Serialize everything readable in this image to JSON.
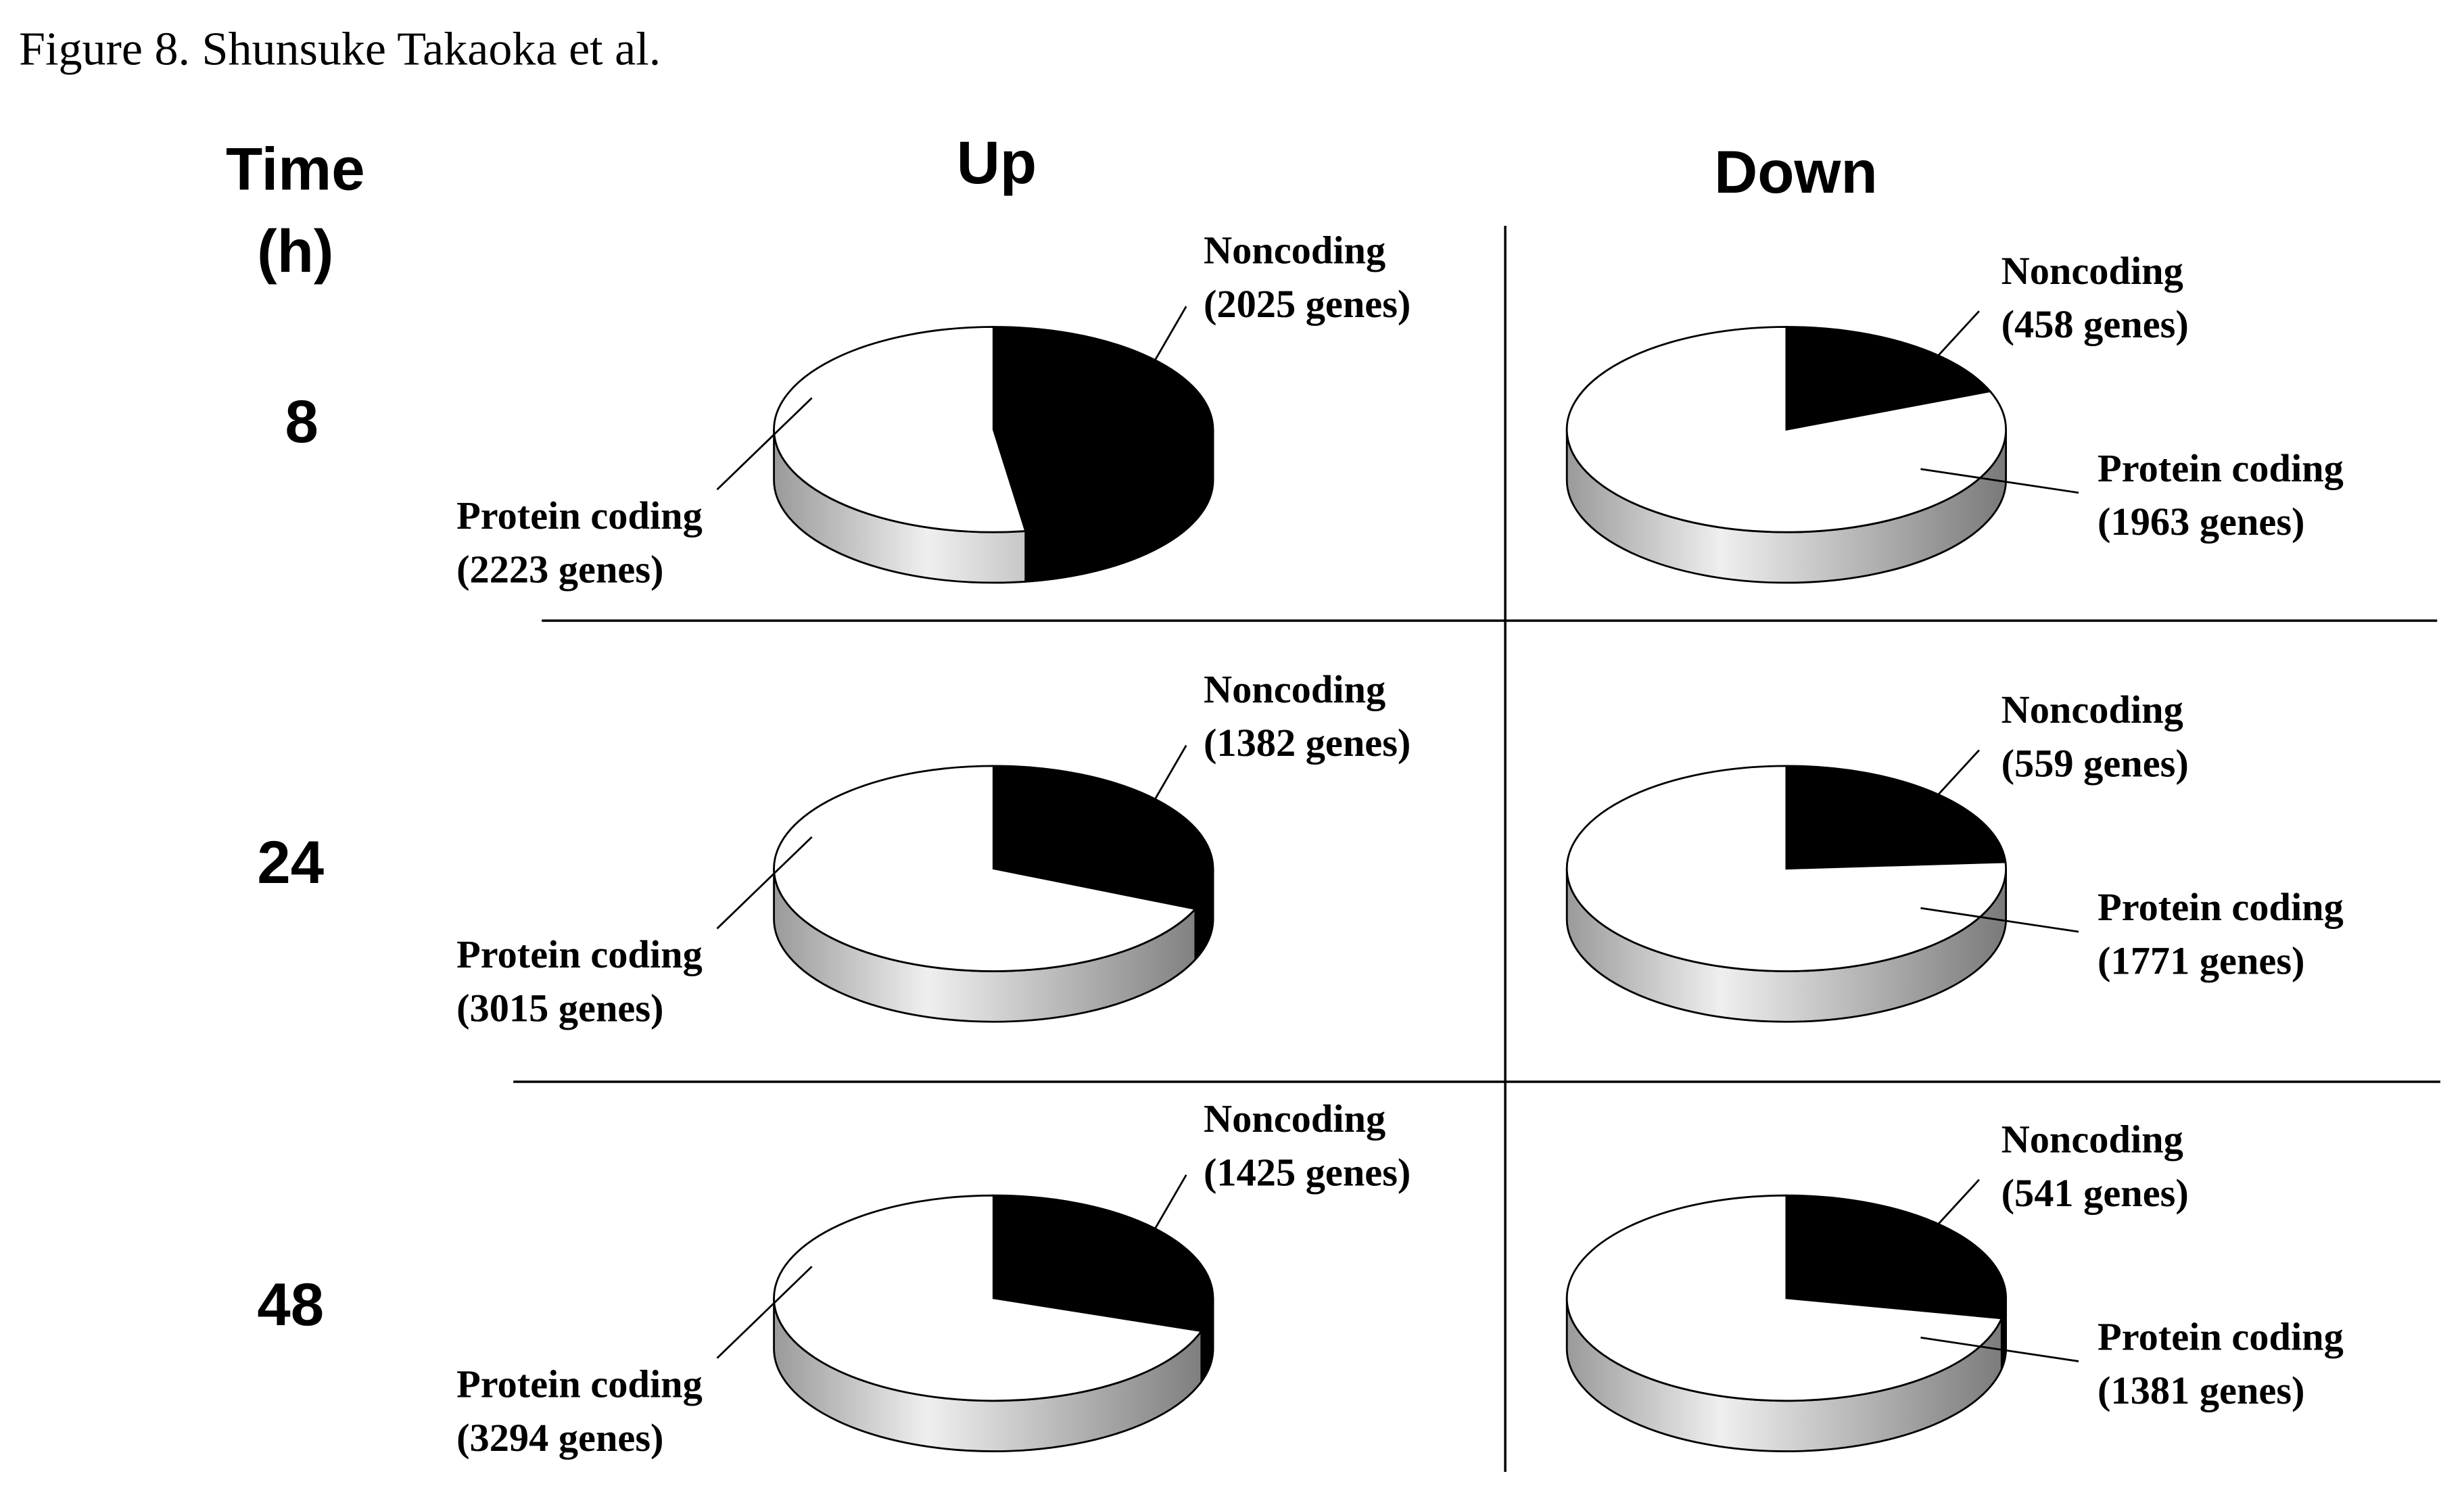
{
  "figure_title": "Figure 8. Shunsuke Takaoka et al.",
  "row_header": [
    "Time",
    "(h)"
  ],
  "column_headers": [
    "Up",
    "Down"
  ],
  "row_labels": [
    "8",
    "24",
    "48"
  ],
  "chart_data": [
    {
      "type": "pie",
      "categories": [
        "Noncoding",
        "Protein coding"
      ],
      "values": [
        2025,
        2223
      ],
      "value_labels": [
        "(2025 genes)",
        "(2223 genes)"
      ],
      "colors": [
        "#000000",
        "#ffffff"
      ]
    },
    {
      "type": "pie",
      "categories": [
        "Noncoding",
        "Protein coding"
      ],
      "values": [
        458,
        1963
      ],
      "value_labels": [
        "(458 genes)",
        "(1963 genes)"
      ],
      "colors": [
        "#000000",
        "#ffffff"
      ]
    },
    {
      "type": "pie",
      "categories": [
        "Noncoding",
        "Protein coding"
      ],
      "values": [
        1382,
        3015
      ],
      "value_labels": [
        "(1382 genes)",
        "(3015 genes)"
      ],
      "colors": [
        "#000000",
        "#ffffff"
      ]
    },
    {
      "type": "pie",
      "categories": [
        "Noncoding",
        "Protein coding"
      ],
      "values": [
        559,
        1771
      ],
      "value_labels": [
        "(559 genes)",
        "(1771 genes)"
      ],
      "colors": [
        "#000000",
        "#ffffff"
      ]
    },
    {
      "type": "pie",
      "categories": [
        "Noncoding",
        "Protein coding"
      ],
      "values": [
        1425,
        3294
      ],
      "value_labels": [
        "(1425 genes)",
        "(3294 genes)"
      ],
      "colors": [
        "#000000",
        "#ffffff"
      ]
    },
    {
      "type": "pie",
      "categories": [
        "Noncoding",
        "Protein coding"
      ],
      "values": [
        541,
        1381
      ],
      "value_labels": [
        "(541 genes)",
        "(1381 genes)"
      ],
      "colors": [
        "#000000",
        "#ffffff"
      ]
    }
  ]
}
